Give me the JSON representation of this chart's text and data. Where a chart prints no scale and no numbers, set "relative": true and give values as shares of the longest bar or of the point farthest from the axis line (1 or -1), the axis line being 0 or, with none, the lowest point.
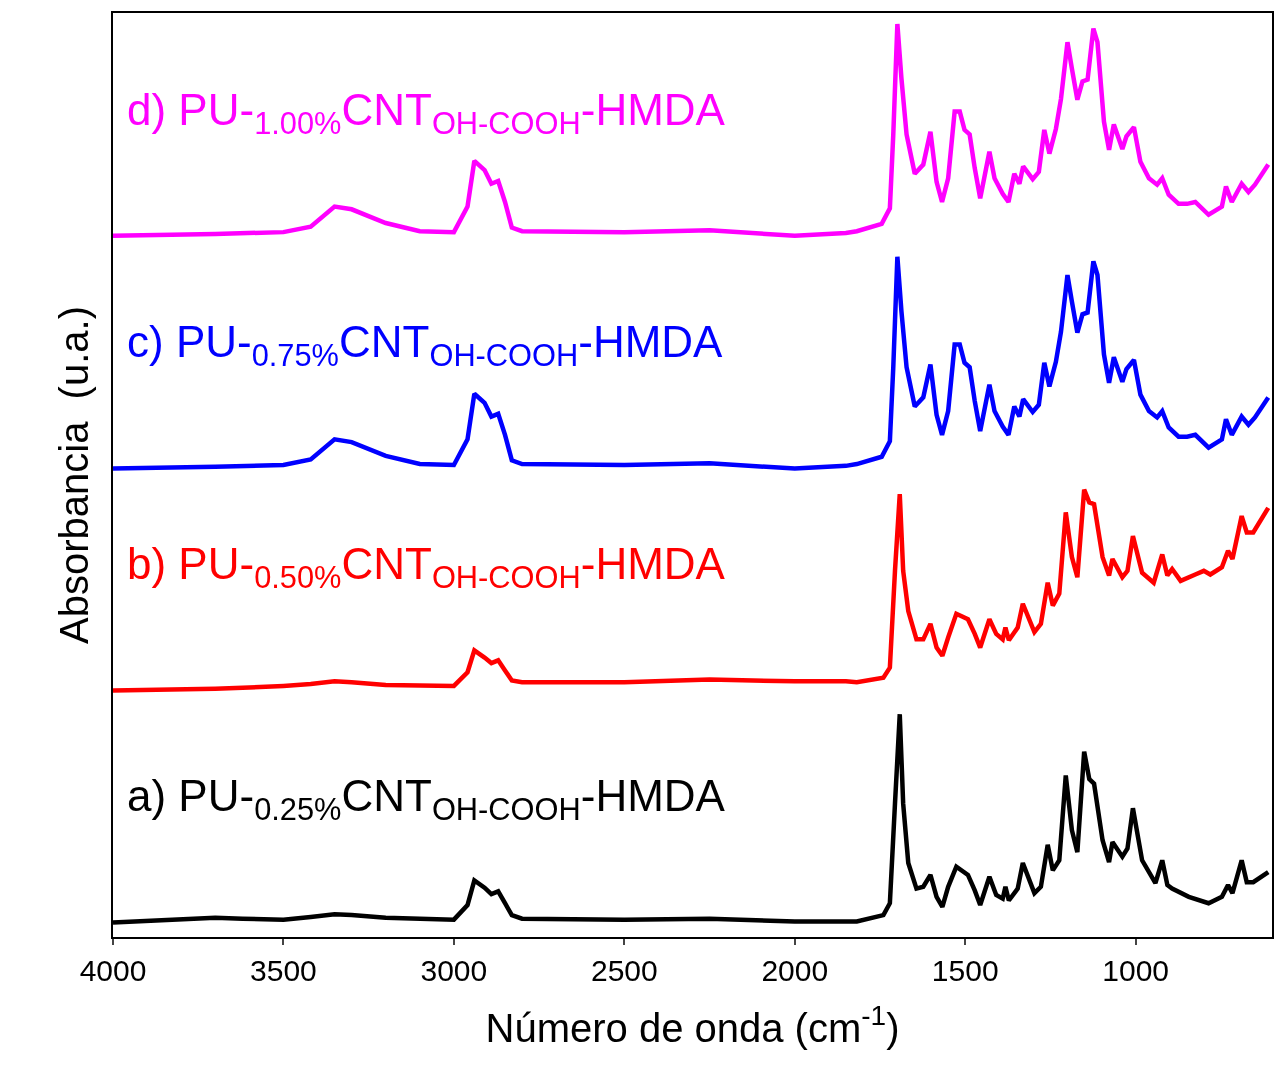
{
  "chart_data": {
    "type": "line",
    "relative": true,
    "xlabel": "Número de onda (cm$^{-1}$)",
    "ylabel": "Absorbancia  (u.a.)",
    "xlim": [
      4000,
      600
    ],
    "xticks": [
      4000,
      3500,
      3000,
      2500,
      2000,
      1500,
      1000
    ],
    "legend": false,
    "line_style": "solid",
    "series": [
      {
        "name": "a) PU-$_{0.25%}$CNT$_{OH-COOH}$-HMDA",
        "color": "#000000",
        "x": [
          4000,
          3700,
          3620,
          3500,
          3420,
          3350,
          3300,
          3200,
          3000,
          2960,
          2940,
          2910,
          2890,
          2870,
          2850,
          2830,
          2800,
          2500,
          2250,
          2000,
          1850,
          1818,
          1740,
          1721,
          1706,
          1692,
          1682,
          1667,
          1643,
          1623,
          1602,
          1584,
          1567,
          1550,
          1526,
          1492,
          1472,
          1456,
          1429,
          1409,
          1390,
          1382,
          1372,
          1346,
          1331,
          1297,
          1278,
          1258,
          1243,
          1224,
          1205,
          1187,
          1171,
          1151,
          1136,
          1122,
          1097,
          1078,
          1068,
          1039,
          1024,
          1008,
          981,
          942,
          922,
          907,
          893,
          844,
          786,
          747,
          729,
          716,
          689,
          674,
          655,
          611
        ],
        "values": [
          0.016,
          0.021,
          0.02,
          0.019,
          0.022,
          0.025,
          0.024,
          0.021,
          0.019,
          0.035,
          0.062,
          0.054,
          0.047,
          0.05,
          0.037,
          0.024,
          0.02,
          0.019,
          0.02,
          0.017,
          0.017,
          0.017,
          0.024,
          0.037,
          0.146,
          0.244,
          0.146,
          0.081,
          0.053,
          0.055,
          0.068,
          0.044,
          0.033,
          0.055,
          0.077,
          0.068,
          0.051,
          0.035,
          0.066,
          0.046,
          0.042,
          0.055,
          0.04,
          0.053,
          0.081,
          0.048,
          0.055,
          0.101,
          0.073,
          0.084,
          0.177,
          0.117,
          0.093,
          0.203,
          0.173,
          0.168,
          0.106,
          0.082,
          0.104,
          0.088,
          0.097,
          0.141,
          0.084,
          0.059,
          0.084,
          0.057,
          0.053,
          0.044,
          0.037,
          0.044,
          0.057,
          0.048,
          0.084,
          0.06,
          0.06,
          0.071
        ]
      },
      {
        "name": "b) PU-$_{0.50%}$CNT$_{OH-COOH}$-HMDA",
        "color": "#ff0000",
        "x": [
          4000,
          3700,
          3620,
          3500,
          3420,
          3350,
          3300,
          3200,
          3000,
          2960,
          2940,
          2910,
          2890,
          2870,
          2850,
          2830,
          2800,
          2500,
          2250,
          2000,
          1850,
          1818,
          1740,
          1721,
          1706,
          1692,
          1682,
          1667,
          1643,
          1623,
          1602,
          1584,
          1567,
          1550,
          1526,
          1492,
          1472,
          1456,
          1429,
          1409,
          1390,
          1382,
          1372,
          1346,
          1331,
          1297,
          1278,
          1258,
          1243,
          1224,
          1205,
          1187,
          1171,
          1151,
          1136,
          1122,
          1097,
          1078,
          1068,
          1039,
          1024,
          1008,
          981,
          947,
          922,
          907,
          893,
          868,
          825,
          800,
          781,
          747,
          729,
          716,
          689,
          674,
          655,
          611
        ],
        "values": [
          0.27,
          0.272,
          0.273,
          0.275,
          0.277,
          0.28,
          0.279,
          0.276,
          0.275,
          0.29,
          0.314,
          0.306,
          0.3,
          0.303,
          0.292,
          0.281,
          0.279,
          0.279,
          0.282,
          0.28,
          0.28,
          0.279,
          0.284,
          0.295,
          0.401,
          0.485,
          0.401,
          0.357,
          0.326,
          0.326,
          0.343,
          0.317,
          0.308,
          0.328,
          0.354,
          0.348,
          0.332,
          0.317,
          0.348,
          0.332,
          0.326,
          0.339,
          0.325,
          0.339,
          0.365,
          0.334,
          0.343,
          0.388,
          0.363,
          0.376,
          0.465,
          0.416,
          0.394,
          0.49,
          0.476,
          0.474,
          0.416,
          0.396,
          0.414,
          0.394,
          0.401,
          0.439,
          0.399,
          0.388,
          0.419,
          0.396,
          0.403,
          0.39,
          0.397,
          0.401,
          0.397,
          0.405,
          0.423,
          0.414,
          0.461,
          0.443,
          0.443,
          0.47
        ]
      },
      {
        "name": "c) PU-$_{0.75%}$CNT$_{OH-COOH}$-HMDA",
        "color": "#0000ff",
        "x": [
          4000,
          3700,
          3500,
          3420,
          3350,
          3300,
          3200,
          3100,
          3000,
          2960,
          2940,
          2910,
          2890,
          2870,
          2850,
          2830,
          2800,
          2500,
          2250,
          2000,
          1850,
          1818,
          1745,
          1721,
          1711,
          1699,
          1687,
          1672,
          1648,
          1623,
          1602,
          1584,
          1568,
          1550,
          1531,
          1516,
          1502,
          1487,
          1472,
          1456,
          1429,
          1414,
          1390,
          1373,
          1356,
          1341,
          1330,
          1302,
          1284,
          1268,
          1253,
          1234,
          1219,
          1200,
          1187,
          1171,
          1156,
          1141,
          1124,
          1112,
          1093,
          1078,
          1064,
          1039,
          1027,
          1005,
          986,
          961,
          937,
          922,
          903,
          874,
          849,
          825,
          786,
          747,
          735,
          718,
          689,
          669,
          650,
          611
        ],
        "values": [
          0.513,
          0.515,
          0.517,
          0.523,
          0.545,
          0.542,
          0.527,
          0.518,
          0.517,
          0.545,
          0.595,
          0.585,
          0.57,
          0.573,
          0.55,
          0.522,
          0.518,
          0.517,
          0.519,
          0.513,
          0.516,
          0.518,
          0.526,
          0.543,
          0.624,
          0.745,
          0.685,
          0.624,
          0.581,
          0.591,
          0.627,
          0.572,
          0.55,
          0.576,
          0.649,
          0.649,
          0.629,
          0.624,
          0.587,
          0.554,
          0.605,
          0.576,
          0.559,
          0.55,
          0.581,
          0.57,
          0.589,
          0.575,
          0.583,
          0.629,
          0.603,
          0.63,
          0.663,
          0.725,
          0.696,
          0.662,
          0.682,
          0.684,
          0.74,
          0.725,
          0.638,
          0.607,
          0.635,
          0.608,
          0.622,
          0.632,
          0.594,
          0.576,
          0.569,
          0.576,
          0.558,
          0.548,
          0.548,
          0.55,
          0.536,
          0.545,
          0.567,
          0.55,
          0.57,
          0.561,
          0.569,
          0.591
        ]
      },
      {
        "name": "d) PU-$_{1.00%}$CNT$_{OH-COOH}$-HMDA",
        "color": "#ff00ff",
        "x": [
          4000,
          3700,
          3500,
          3420,
          3350,
          3300,
          3200,
          3100,
          3000,
          2960,
          2940,
          2910,
          2890,
          2870,
          2850,
          2830,
          2800,
          2500,
          2250,
          2000,
          1850,
          1818,
          1745,
          1721,
          1711,
          1699,
          1687,
          1672,
          1648,
          1623,
          1602,
          1584,
          1568,
          1550,
          1531,
          1516,
          1502,
          1487,
          1472,
          1456,
          1429,
          1414,
          1390,
          1373,
          1356,
          1341,
          1330,
          1302,
          1284,
          1268,
          1253,
          1234,
          1219,
          1200,
          1187,
          1171,
          1156,
          1141,
          1124,
          1112,
          1093,
          1078,
          1064,
          1039,
          1027,
          1005,
          986,
          961,
          937,
          922,
          903,
          874,
          849,
          825,
          786,
          747,
          735,
          718,
          689,
          669,
          650,
          611
        ],
        "values": [
          0.768,
          0.77,
          0.772,
          0.778,
          0.8,
          0.797,
          0.782,
          0.773,
          0.772,
          0.8,
          0.85,
          0.84,
          0.825,
          0.828,
          0.805,
          0.777,
          0.773,
          0.772,
          0.774,
          0.768,
          0.771,
          0.773,
          0.781,
          0.798,
          0.879,
          1.0,
          0.94,
          0.879,
          0.836,
          0.846,
          0.882,
          0.827,
          0.805,
          0.831,
          0.904,
          0.904,
          0.884,
          0.879,
          0.842,
          0.809,
          0.86,
          0.831,
          0.814,
          0.805,
          0.836,
          0.825,
          0.844,
          0.83,
          0.838,
          0.884,
          0.858,
          0.885,
          0.918,
          0.98,
          0.951,
          0.917,
          0.937,
          0.939,
          0.995,
          0.98,
          0.893,
          0.862,
          0.89,
          0.863,
          0.877,
          0.887,
          0.849,
          0.831,
          0.824,
          0.831,
          0.813,
          0.803,
          0.803,
          0.805,
          0.791,
          0.8,
          0.822,
          0.805,
          0.825,
          0.816,
          0.824,
          0.846
        ]
      }
    ]
  }
}
